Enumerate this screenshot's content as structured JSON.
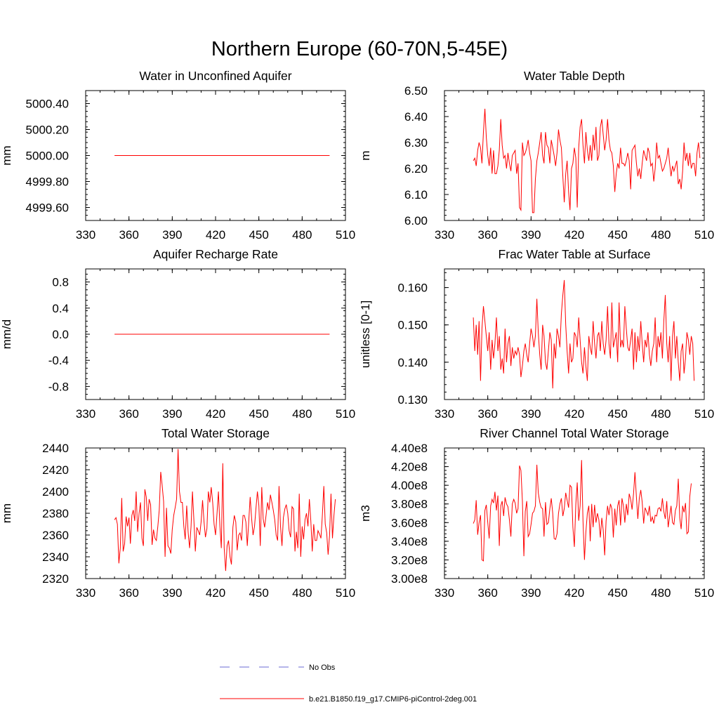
{
  "figure": {
    "title": "Northern Europe (60-70N,5-45E)"
  },
  "legend": {
    "entries": [
      {
        "label": "No Obs",
        "color": "#6b6bd6",
        "style": "dashed"
      },
      {
        "label": "b.e21.B1850.f19_g17.CMIP6-piControl-2deg.001",
        "color": "#ff0000",
        "style": "solid"
      }
    ]
  },
  "chart_data": [
    {
      "type": "line",
      "title": "Water in Unconfined Aquifer",
      "xlabel": "",
      "ylabel": "mm",
      "xlim": [
        330,
        510
      ],
      "xticks": [
        330,
        360,
        390,
        420,
        450,
        480,
        510
      ],
      "xtick_labels": [
        "330",
        "360",
        "390",
        "420",
        "450",
        "480",
        "510"
      ],
      "ylim": [
        4999.5,
        5000.5
      ],
      "yticks": [
        4999.6,
        4999.8,
        5000.0,
        5000.2,
        5000.4
      ],
      "ytick_labels": [
        "4999.60",
        "4999.80",
        "5000.00",
        "5000.20",
        "5000.40"
      ],
      "series": [
        {
          "name": "b.e21.B1850.f19_g17.CMIP6-piControl-2deg.001",
          "x_start": 350,
          "values": [
            5000.0,
            5000.0
          ]
        }
      ],
      "x": [
        350,
        499
      ]
    },
    {
      "type": "line",
      "title": "Water Table Depth",
      "xlabel": "",
      "ylabel": "m",
      "xlim": [
        330,
        510
      ],
      "xticks": [
        330,
        360,
        390,
        420,
        450,
        480,
        510
      ],
      "xtick_labels": [
        "330",
        "360",
        "390",
        "420",
        "450",
        "480",
        "510"
      ],
      "ylim": [
        6.0,
        6.5
      ],
      "yticks": [
        6.0,
        6.1,
        6.2,
        6.3,
        6.4,
        6.5
      ],
      "ytick_labels": [
        "6.00",
        "6.10",
        "6.20",
        "6.30",
        "6.40",
        "6.50"
      ],
      "series": [
        {
          "name": "b.e21.B1850.f19_g17.CMIP6-piControl-2deg.001",
          "x_start": 350,
          "values": [
            6.23,
            6.24,
            6.21,
            6.27,
            6.3,
            6.28,
            6.22,
            6.34,
            6.43,
            6.32,
            6.25,
            6.21,
            6.28,
            6.18,
            6.27,
            6.18,
            6.18,
            6.21,
            6.27,
            6.39,
            6.29,
            6.24,
            6.25,
            6.2,
            6.26,
            6.22,
            6.19,
            6.25,
            6.26,
            6.27,
            6.18,
            6.22,
            6.05,
            6.04,
            6.3,
            6.25,
            6.26,
            6.28,
            6.31,
            6.26,
            6.23,
            6.03,
            6.03,
            6.16,
            6.23,
            6.26,
            6.3,
            6.34,
            6.25,
            6.22,
            6.34,
            6.29,
            6.28,
            6.22,
            6.31,
            6.28,
            6.25,
            6.21,
            6.26,
            6.35,
            6.31,
            6.28,
            6.17,
            6.07,
            6.18,
            6.23,
            6.11,
            6.04,
            6.2,
            6.22,
            6.28,
            6.24,
            6.05,
            6.28,
            6.36,
            6.39,
            6.29,
            6.22,
            6.34,
            6.27,
            6.23,
            6.29,
            6.23,
            6.33,
            6.27,
            6.36,
            6.23,
            6.25,
            6.36,
            6.39,
            6.33,
            6.27,
            6.31,
            6.39,
            6.31,
            6.27,
            6.26,
            6.21,
            6.11,
            6.18,
            6.22,
            6.2,
            6.28,
            6.22,
            6.22,
            6.21,
            6.23,
            6.26,
            6.23,
            6.12,
            6.27,
            6.28,
            6.29,
            6.22,
            6.17,
            6.2,
            6.16,
            6.22,
            6.27,
            6.25,
            6.23,
            6.28,
            6.26,
            6.21,
            6.22,
            6.15,
            6.2,
            6.3,
            6.24,
            6.25,
            6.22,
            6.19,
            6.2,
            6.22,
            6.24,
            6.28,
            6.22,
            6.17,
            6.21,
            6.19,
            6.21,
            6.23,
            6.14,
            6.16,
            6.12,
            6.19,
            6.3,
            6.23,
            6.26,
            6.21,
            6.26,
            6.2,
            6.22,
            6.22,
            6.17,
            6.26,
            6.3,
            6.24
          ]
        }
      ]
    },
    {
      "type": "line",
      "title": "Aquifer Recharge Rate",
      "xlabel": "",
      "ylabel": "mm/d",
      "xlim": [
        330,
        510
      ],
      "xticks": [
        330,
        360,
        390,
        420,
        450,
        480,
        510
      ],
      "xtick_labels": [
        "330",
        "360",
        "390",
        "420",
        "450",
        "480",
        "510"
      ],
      "ylim": [
        -1.0,
        1.0
      ],
      "yticks": [
        -0.8,
        -0.4,
        0.0,
        0.4,
        0.8
      ],
      "ytick_labels": [
        "-0.8",
        "-0.4",
        "0.0",
        "0.4",
        "0.8"
      ],
      "series": [
        {
          "name": "b.e21.B1850.f19_g17.CMIP6-piControl-2deg.001",
          "x_start": 350,
          "values": [
            0.0,
            0.0
          ]
        }
      ],
      "x": [
        350,
        499
      ]
    },
    {
      "type": "line",
      "title": "Frac Water Table at Surface",
      "xlabel": "",
      "ylabel": "unitless [0-1]",
      "xlim": [
        330,
        510
      ],
      "xticks": [
        330,
        360,
        390,
        420,
        450,
        480,
        510
      ],
      "xtick_labels": [
        "330",
        "360",
        "390",
        "420",
        "450",
        "480",
        "510"
      ],
      "ylim": [
        0.13,
        0.165
      ],
      "yticks": [
        0.13,
        0.14,
        0.15,
        0.16
      ],
      "ytick_labels": [
        "0.130",
        "0.140",
        "0.150",
        "0.160"
      ],
      "series": [
        {
          "name": "b.e21.B1850.f19_g17.CMIP6-piControl-2deg.001",
          "x_start": 350,
          "values": [
            0.152,
            0.143,
            0.15,
            0.142,
            0.151,
            0.135,
            0.149,
            0.155,
            0.151,
            0.147,
            0.143,
            0.148,
            0.138,
            0.146,
            0.141,
            0.145,
            0.152,
            0.143,
            0.147,
            0.138,
            0.141,
            0.137,
            0.149,
            0.14,
            0.145,
            0.147,
            0.139,
            0.144,
            0.141,
            0.143,
            0.142,
            0.144,
            0.142,
            0.136,
            0.139,
            0.143,
            0.145,
            0.142,
            0.14,
            0.145,
            0.149,
            0.147,
            0.144,
            0.147,
            0.157,
            0.148,
            0.142,
            0.138,
            0.15,
            0.147,
            0.14,
            0.138,
            0.143,
            0.148,
            0.146,
            0.133,
            0.145,
            0.141,
            0.149,
            0.147,
            0.144,
            0.153,
            0.158,
            0.162,
            0.15,
            0.143,
            0.137,
            0.145,
            0.14,
            0.141,
            0.148,
            0.147,
            0.144,
            0.152,
            0.146,
            0.14,
            0.137,
            0.144,
            0.139,
            0.135,
            0.147,
            0.144,
            0.142,
            0.151,
            0.145,
            0.141,
            0.147,
            0.148,
            0.143,
            0.151,
            0.145,
            0.142,
            0.146,
            0.155,
            0.145,
            0.141,
            0.156,
            0.144,
            0.146,
            0.148,
            0.14,
            0.156,
            0.144,
            0.146,
            0.144,
            0.155,
            0.149,
            0.144,
            0.143,
            0.146,
            0.149,
            0.138,
            0.148,
            0.14,
            0.147,
            0.143,
            0.151,
            0.145,
            0.14,
            0.146,
            0.144,
            0.148,
            0.142,
            0.139,
            0.143,
            0.145,
            0.152,
            0.14,
            0.147,
            0.144,
            0.148,
            0.141,
            0.151,
            0.158,
            0.145,
            0.14,
            0.147,
            0.135,
            0.147,
            0.151,
            0.141,
            0.147,
            0.14,
            0.135,
            0.143,
            0.145,
            0.137,
            0.141,
            0.148,
            0.146,
            0.142,
            0.147,
            0.145,
            0.135
          ]
        }
      ]
    },
    {
      "type": "line",
      "title": "Total Water Storage",
      "xlabel": "",
      "ylabel": "mm",
      "xlim": [
        330,
        510
      ],
      "xticks": [
        330,
        360,
        390,
        420,
        450,
        480,
        510
      ],
      "xtick_labels": [
        "330",
        "360",
        "390",
        "420",
        "450",
        "480",
        "510"
      ],
      "ylim": [
        2320,
        2440
      ],
      "yticks": [
        2320,
        2340,
        2360,
        2380,
        2400,
        2420,
        2440
      ],
      "ytick_labels": [
        "2320",
        "2340",
        "2360",
        "2380",
        "2400",
        "2420",
        "2440"
      ],
      "series": [
        {
          "name": "b.e21.B1850.f19_g17.CMIP6-piControl-2deg.001",
          "x_start": 350,
          "values": [
            2374,
            2376,
            2370,
            2334,
            2348,
            2394,
            2345,
            2352,
            2377,
            2368,
            2376,
            2352,
            2378,
            2383,
            2373,
            2400,
            2363,
            2380,
            2390,
            2357,
            2350,
            2402,
            2395,
            2373,
            2393,
            2388,
            2351,
            2365,
            2357,
            2355,
            2368,
            2383,
            2418,
            2406,
            2391,
            2340,
            2385,
            2350,
            2348,
            2343,
            2365,
            2378,
            2385,
            2393,
            2439,
            2400,
            2390,
            2390,
            2368,
            2356,
            2387,
            2363,
            2348,
            2368,
            2400,
            2373,
            2345,
            2367,
            2364,
            2360,
            2372,
            2392,
            2372,
            2358,
            2366,
            2400,
            2390,
            2404,
            2390,
            2370,
            2360,
            2380,
            2400,
            2368,
            2348,
            2426,
            2348,
            2327,
            2350,
            2355,
            2340,
            2333,
            2367,
            2378,
            2372,
            2346,
            2360,
            2362,
            2355,
            2378,
            2378,
            2372,
            2350,
            2373,
            2395,
            2375,
            2360,
            2368,
            2385,
            2400,
            2387,
            2350,
            2404,
            2375,
            2367,
            2378,
            2390,
            2383,
            2397,
            2390,
            2383,
            2374,
            2360,
            2355,
            2405,
            2368,
            2350,
            2376,
            2384,
            2388,
            2380,
            2364,
            2358,
            2386,
            2384,
            2345,
            2363,
            2348,
            2398,
            2340,
            2368,
            2356,
            2374,
            2380,
            2368,
            2393,
            2373,
            2345,
            2370,
            2355,
            2355,
            2364,
            2361,
            2357,
            2378,
            2405,
            2370,
            2362,
            2342,
            2360,
            2398,
            2357,
            2378,
            2393
          ]
        }
      ]
    },
    {
      "type": "line",
      "title": "River Channel Total Water Storage",
      "xlabel": "",
      "ylabel": "m3",
      "xlim": [
        330,
        510
      ],
      "xticks": [
        330,
        360,
        390,
        420,
        450,
        480,
        510
      ],
      "xtick_labels": [
        "330",
        "360",
        "390",
        "420",
        "450",
        "480",
        "510"
      ],
      "ylim": [
        300000000,
        440000000
      ],
      "yticks": [
        300000000,
        320000000,
        340000000,
        360000000,
        380000000,
        400000000,
        420000000,
        440000000
      ],
      "ytick_labels": [
        "3.00e8",
        "3.20e8",
        "3.40e8",
        "3.60e8",
        "3.80e8",
        "4.00e8",
        "4.20e8",
        "4.40e8"
      ],
      "series": [
        {
          "name": "b.e21.B1850.f19_g17.CMIP6-piControl-2deg.001",
          "x_start": 350,
          "values": [
            359000000,
            363000000,
            384000000,
            347000000,
            360000000,
            368000000,
            320000000,
            319000000,
            373000000,
            379000000,
            360000000,
            343000000,
            378000000,
            385000000,
            381000000,
            393000000,
            373000000,
            389000000,
            335000000,
            378000000,
            383000000,
            367000000,
            387000000,
            380000000,
            377000000,
            363000000,
            345000000,
            380000000,
            385000000,
            381000000,
            370000000,
            375000000,
            421000000,
            416000000,
            383000000,
            324000000,
            372000000,
            383000000,
            345000000,
            348000000,
            358000000,
            370000000,
            372000000,
            378000000,
            422000000,
            392000000,
            382000000,
            376000000,
            375000000,
            345000000,
            382000000,
            358000000,
            360000000,
            375000000,
            386000000,
            370000000,
            343000000,
            342000000,
            348000000,
            370000000,
            380000000,
            386000000,
            367000000,
            375000000,
            392000000,
            384000000,
            376000000,
            400000000,
            398000000,
            355000000,
            334000000,
            380000000,
            403000000,
            362000000,
            378000000,
            427000000,
            362000000,
            320000000,
            350000000,
            370000000,
            378000000,
            340000000,
            380000000,
            355000000,
            379000000,
            360000000,
            370000000,
            363000000,
            344000000,
            365000000,
            352000000,
            325000000,
            362000000,
            378000000,
            368000000,
            380000000,
            375000000,
            344000000,
            375000000,
            357000000,
            378000000,
            384000000,
            357000000,
            386000000,
            378000000,
            360000000,
            380000000,
            368000000,
            391000000,
            385000000,
            374000000,
            391000000,
            414000000,
            387000000,
            364000000,
            386000000,
            395000000,
            382000000,
            359000000,
            376000000,
            372000000,
            368000000,
            378000000,
            361000000,
            366000000,
            359000000,
            368000000,
            367000000,
            375000000,
            376000000,
            372000000,
            386000000,
            372000000,
            364000000,
            383000000,
            355000000,
            367000000,
            378000000,
            360000000,
            358000000,
            373000000,
            378000000,
            407000000,
            365000000,
            353000000,
            378000000,
            371000000,
            381000000,
            348000000,
            350000000,
            388000000,
            402000000
          ]
        }
      ]
    }
  ]
}
